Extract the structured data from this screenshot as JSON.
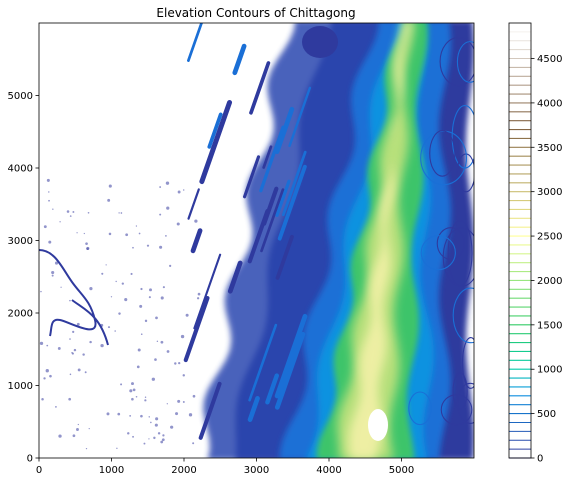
{
  "chart_data": {
    "type": "contour",
    "title": "Elevation Contours of Chittagong",
    "xlabel": "",
    "ylabel": "",
    "xlim": [
      0,
      6000
    ],
    "ylim": [
      0,
      6000
    ],
    "x_ticks": [
      0,
      1000,
      2000,
      3000,
      4000,
      5000
    ],
    "y_ticks": [
      0,
      1000,
      2000,
      3000,
      4000,
      5000
    ],
    "x_tick_labels": [
      "0",
      "1000",
      "2000",
      "3000",
      "4000",
      "5000"
    ],
    "y_tick_labels": [
      "0",
      "1000",
      "2000",
      "3000",
      "4000",
      "5000"
    ],
    "colorbar": {
      "min": 0,
      "max": 4900,
      "level_step": 100,
      "ticks": [
        0,
        500,
        1000,
        1500,
        2000,
        2500,
        3000,
        3500,
        4000,
        4500
      ],
      "tick_labels": [
        "0",
        "500",
        "1000",
        "1500",
        "2000",
        "2500",
        "3000",
        "3500",
        "4000",
        "4500"
      ],
      "colormap": "terrain",
      "stops": [
        {
          "v": 0,
          "color": "#333399"
        },
        {
          "v": 750,
          "color": "#0a94e4"
        },
        {
          "v": 1000,
          "color": "#00ccaa"
        },
        {
          "v": 1500,
          "color": "#33cc66"
        },
        {
          "v": 2500,
          "color": "#ffff99"
        },
        {
          "v": 3750,
          "color": "#806040"
        },
        {
          "v": 4900,
          "color": "#ffffff"
        }
      ]
    },
    "grid": false
  }
}
